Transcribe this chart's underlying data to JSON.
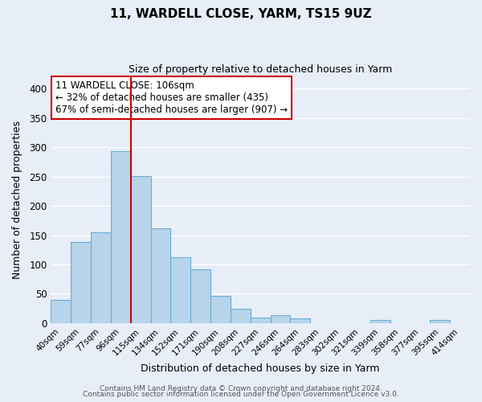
{
  "title": "11, WARDELL CLOSE, YARM, TS15 9UZ",
  "subtitle": "Size of property relative to detached houses in Yarm",
  "xlabel": "Distribution of detached houses by size in Yarm",
  "ylabel": "Number of detached properties",
  "bar_labels": [
    "40sqm",
    "59sqm",
    "77sqm",
    "96sqm",
    "115sqm",
    "134sqm",
    "152sqm",
    "171sqm",
    "190sqm",
    "208sqm",
    "227sqm",
    "246sqm",
    "264sqm",
    "283sqm",
    "302sqm",
    "321sqm",
    "339sqm",
    "358sqm",
    "377sqm",
    "395sqm",
    "414sqm"
  ],
  "bar_heights": [
    40,
    139,
    155,
    293,
    251,
    161,
    113,
    92,
    46,
    25,
    10,
    13,
    8,
    0,
    0,
    0,
    5,
    0,
    0,
    5,
    0
  ],
  "bar_color": "#b8d4ea",
  "bar_edge_color": "#6aaed6",
  "vline_x": 3.5,
  "vline_color": "#cc0000",
  "ylim": [
    0,
    420
  ],
  "yticks": [
    0,
    50,
    100,
    150,
    200,
    250,
    300,
    350,
    400
  ],
  "annotation_text": "11 WARDELL CLOSE: 106sqm\n← 32% of detached houses are smaller (435)\n67% of semi-detached houses are larger (907) →",
  "annotation_box_color": "#ffffff",
  "annotation_box_edge": "#cc0000",
  "footer_line1": "Contains HM Land Registry data © Crown copyright and database right 2024.",
  "footer_line2": "Contains public sector information licensed under the Open Government Licence v3.0.",
  "background_color": "#e8eef8",
  "plot_background": "#e8eef8",
  "grid_color": "#ffffff"
}
